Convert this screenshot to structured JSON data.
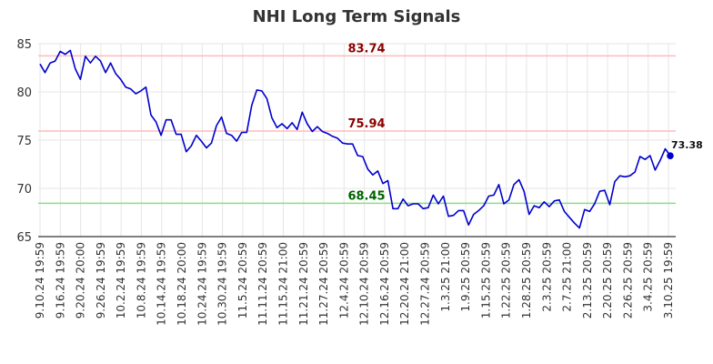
{
  "chart_data": {
    "type": "line",
    "title": "NHI Long Term Signals",
    "xlabel": "",
    "ylabel": "",
    "ylim": [
      65,
      85
    ],
    "y_ticks": [
      65,
      70,
      75,
      80,
      85
    ],
    "grid": true,
    "x_tick_labels": [
      "9.10.24 19:59",
      "9.16.24 19:59",
      "9.20.24 20:00",
      "9.26.24 19:59",
      "10.2.24 19:59",
      "10.8.24 19:59",
      "10.14.24 19:59",
      "10.18.24 20:00",
      "10.24.24 19:59",
      "10.30.24 19:59",
      "11.5.24 20:59",
      "11.11.24 20:59",
      "11.15.24 21:00",
      "11.21.24 20:59",
      "11.27.24 20:59",
      "12.4.24 20:59",
      "12.10.24 20:59",
      "12.16.24 20:59",
      "12.20.24 21:00",
      "12.27.24 20:59",
      "1.3.25 21:00",
      "1.9.25 20:59",
      "1.15.25 20:59",
      "1.22.25 20:59",
      "1.28.25 20:59",
      "2.3.25 20:59",
      "2.7.25 21:00",
      "2.13.25 20:59",
      "2.20.25 20:59",
      "2.26.25 20:59",
      "3.4.25 20:59",
      "3.10.25 19:59"
    ],
    "reference_lines": [
      {
        "label": "83.74",
        "value": 83.74,
        "color": "#ffbbbb",
        "label_color": "#8b0000"
      },
      {
        "label": "75.94",
        "value": 75.94,
        "color": "#ffbbbb",
        "label_color": "#8b0000"
      },
      {
        "label": "68.45",
        "value": 68.45,
        "color": "#88dd88",
        "label_color": "#006400"
      }
    ],
    "series": [
      {
        "color": "#0000cc",
        "values": [
          82.9,
          82.0,
          83.0,
          83.2,
          84.2,
          83.9,
          84.3,
          82.4,
          81.3,
          83.7,
          83.0,
          83.7,
          83.2,
          82.0,
          83.0,
          81.9,
          81.3,
          80.5,
          80.3,
          79.8,
          80.1,
          80.5,
          77.6,
          76.9,
          75.5,
          77.1,
          77.1,
          75.6,
          75.6,
          73.8,
          74.4,
          75.5,
          74.9,
          74.2,
          74.7,
          76.5,
          77.4,
          75.7,
          75.5,
          74.9,
          75.8,
          75.8,
          78.6,
          80.2,
          80.1,
          79.3,
          77.3,
          76.3,
          76.7,
          76.2,
          76.8,
          76.1,
          77.9,
          76.7,
          75.9,
          76.4,
          75.9,
          75.7,
          75.4,
          75.2,
          74.7,
          74.6,
          74.6,
          73.4,
          73.3,
          72.0,
          71.4,
          71.8,
          70.5,
          70.8,
          67.9,
          67.9,
          68.9,
          68.2,
          68.4,
          68.4,
          67.9,
          68.0,
          69.3,
          68.4,
          69.2,
          67.1,
          67.2,
          67.7,
          67.7,
          66.2,
          67.3,
          67.7,
          68.2,
          69.2,
          69.3,
          70.4,
          68.4,
          68.8,
          70.4,
          70.9,
          69.7,
          67.3,
          68.2,
          68.0,
          68.6,
          68.1,
          68.7,
          68.8,
          67.6,
          67.0,
          66.4,
          65.9,
          67.8,
          67.6,
          68.4,
          69.7,
          69.8,
          68.3,
          70.7,
          71.3,
          71.2,
          71.3,
          71.7,
          73.3,
          73.0,
          73.4,
          71.9,
          72.9,
          74.1,
          73.38
        ]
      }
    ],
    "last_value_label": "73.38"
  }
}
